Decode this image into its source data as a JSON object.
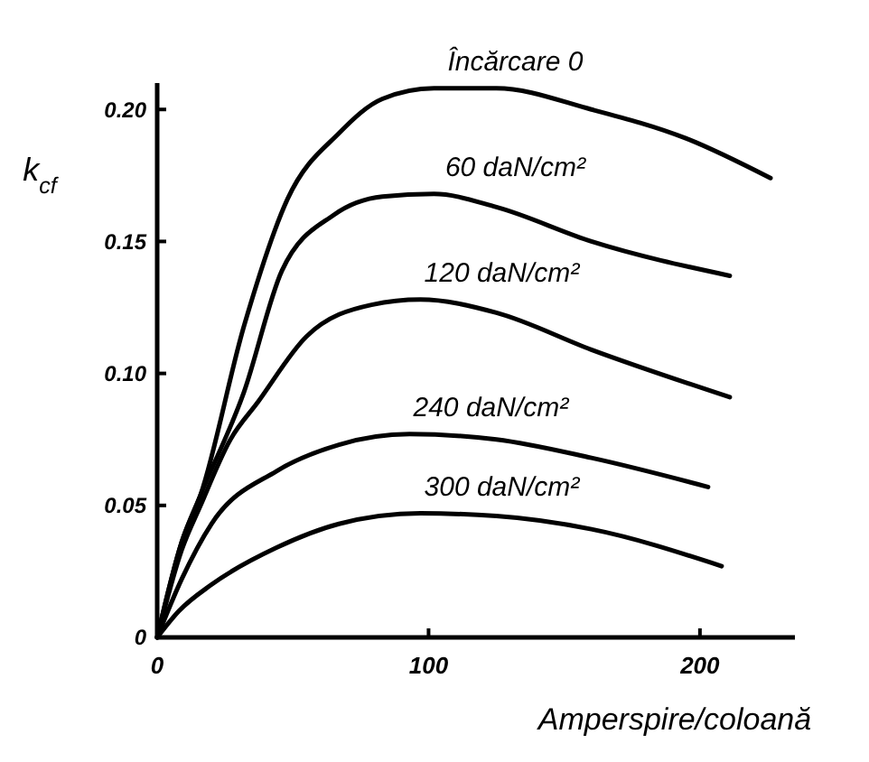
{
  "chart_data": {
    "type": "line",
    "xlabel": "Amperspire/coloană",
    "ylabel": "k$_{cf}$",
    "xlim": [
      0,
      235
    ],
    "ylim": [
      0,
      0.21
    ],
    "xticks": [
      0,
      100,
      200
    ],
    "yticks": [
      0,
      0.05,
      {
        "value": 0.1,
        "label": "0.10"
      },
      0.15,
      {
        "value": 0.2,
        "label": "0.20"
      }
    ],
    "series": [
      {
        "name": "Încărcare 0",
        "color": "#000000",
        "x": [
          0,
          9,
          16,
          32,
          48,
          67,
          83,
          102,
          125,
          160,
          195,
          226
        ],
        "values": [
          0,
          0.036,
          0.054,
          0.118,
          0.166,
          0.191,
          0.204,
          0.208,
          0.208,
          0.2,
          0.189,
          0.174
        ]
      },
      {
        "name": "60 daN/cm²",
        "color": "#000000",
        "x": [
          0,
          9,
          16,
          32,
          46,
          65,
          83,
          102,
          125,
          160,
          211
        ],
        "values": [
          0,
          0.036,
          0.054,
          0.093,
          0.139,
          0.16,
          0.167,
          0.168,
          0.163,
          0.15,
          0.137
        ]
      },
      {
        "name": "120 daN/cm²",
        "color": "#000000",
        "x": [
          0,
          9,
          16,
          27,
          37,
          55,
          79,
          97,
          125,
          160,
          211
        ],
        "values": [
          0,
          0.033,
          0.05,
          0.075,
          0.089,
          0.114,
          0.126,
          0.128,
          0.123,
          0.109,
          0.091
        ]
      },
      {
        "name": "240 daN/cm²",
        "color": "#000000",
        "x": [
          0,
          9,
          20,
          44,
          67,
          93,
          125,
          160,
          203
        ],
        "values": [
          0,
          0.022,
          0.043,
          0.063,
          0.073,
          0.077,
          0.075,
          0.068,
          0.057
        ]
      },
      {
        "name": "300 daN/cm²",
        "color": "#000000",
        "x": [
          0,
          8,
          20,
          44,
          67,
          97,
          125,
          160,
          208
        ],
        "values": [
          0,
          0.01,
          0.02,
          0.034,
          0.043,
          0.047,
          0.046,
          0.041,
          0.027
        ]
      }
    ]
  }
}
